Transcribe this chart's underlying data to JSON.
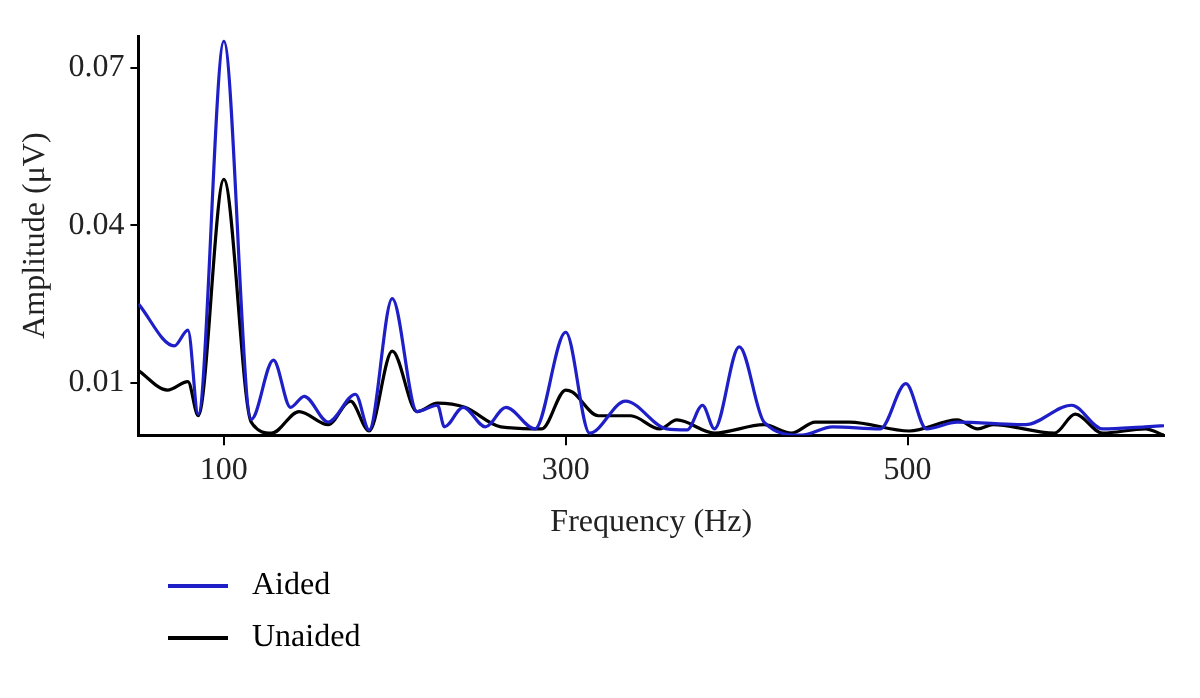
{
  "chart_data": {
    "type": "line",
    "xlabel": "Frequency (Hz)",
    "ylabel": "Amplitude (μV)",
    "xlim": [
      50,
      650
    ],
    "xticks": [
      100,
      300,
      500
    ],
    "ylim": [
      0,
      0.076
    ],
    "yticks": [
      0.01,
      0.04,
      0.07
    ],
    "grid": false,
    "legend": "bottom left",
    "marker": "none",
    "line_style": "solid",
    "series": [
      {
        "name": "Aided",
        "color": "#1f1fc8",
        "x": [
          50,
          71,
          79,
          85,
          100,
          116,
          129,
          139,
          147,
          161,
          177,
          185,
          198.5,
          213,
          225,
          229,
          240,
          253,
          265,
          282,
          300,
          314,
          335,
          359,
          371,
          380,
          387,
          401.5,
          416,
          438,
          456,
          484,
          499,
          511,
          529,
          569,
          596,
          614,
          639,
          650
        ],
        "values": [
          0.025,
          0.017,
          0.02,
          0.004,
          0.075,
          0.003,
          0.0143,
          0.0053,
          0.0074,
          0.0025,
          0.0078,
          0.001,
          0.026,
          0.0045,
          0.0057,
          0.0016,
          0.0053,
          0.0016,
          0.0053,
          0.0012,
          0.0196,
          0.0004,
          0.0065,
          0.0012,
          0.001,
          0.0057,
          0.0012,
          0.0168,
          0.0025,
          0.0,
          0.0016,
          0.0012,
          0.0098,
          0.0012,
          0.0025,
          0.002,
          0.0057,
          0.0012,
          0.0016,
          0.0018
        ]
      },
      {
        "name": "Unaided",
        "color": "#000000",
        "x": [
          50,
          67,
          79,
          85,
          100,
          116,
          128,
          144,
          161,
          174,
          185,
          198.5,
          213,
          225,
          241,
          262,
          286,
          300,
          304,
          319,
          338,
          355,
          365,
          387,
          416,
          432,
          446,
          466,
          501,
          529,
          541,
          550,
          586,
          598,
          614,
          639,
          650
        ],
        "values": [
          0.0123,
          0.0086,
          0.0102,
          0.0037,
          0.0487,
          0.0025,
          0.0004,
          0.0045,
          0.002,
          0.0065,
          0.0008,
          0.016,
          0.0045,
          0.0061,
          0.0053,
          0.0016,
          0.0012,
          0.0086,
          0.0082,
          0.0037,
          0.0037,
          0.0012,
          0.0029,
          0.0004,
          0.002,
          0.0004,
          0.0025,
          0.0025,
          0.0008,
          0.0029,
          0.0012,
          0.002,
          0.0004,
          0.004,
          0.0004,
          0.0012,
          0.0
        ]
      }
    ]
  }
}
